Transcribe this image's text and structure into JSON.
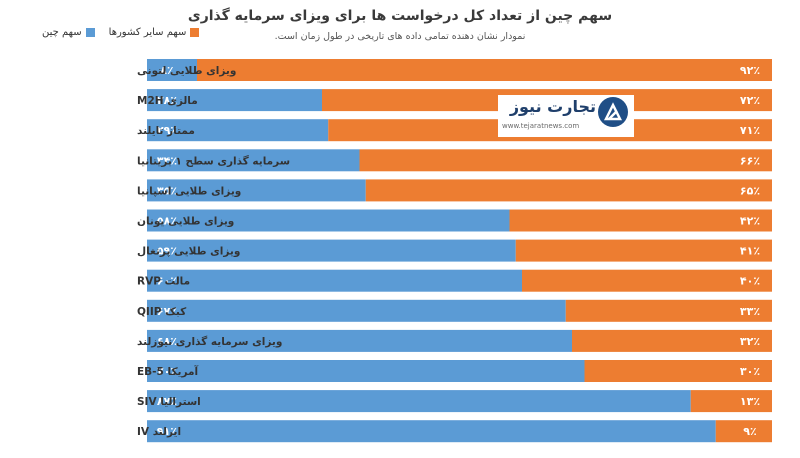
{
  "chart_data": {
    "type": "bar",
    "orientation": "horizontal",
    "stacked": "100%",
    "title": "سهم چین از تعداد کل درخواست ها برای ویزای سرمایه گذاری",
    "subtitle": "نمودار نشان دهنده تمامی داده های تاریخی در طول زمان است.",
    "categories": [
      "ویزای طلایی لتونی",
      "مالزی M2H",
      "ممتاز تایلند",
      "سرمایه گذاری سطح ۱ بریتانیا",
      "ویزای طلایی اسپانیا",
      "ویزای طلایی یونان",
      "ویزای طلایی پرتغال",
      "مالت RVP",
      "کبک QIIP",
      "ویزای سرمایه گذاری نیوزلند",
      "آمریکا EB-5",
      "استرالیا SIV",
      "ایرلند IV"
    ],
    "series": [
      {
        "name": "سهم چین",
        "color": "#5b9bd5",
        "values": [
          8,
          28,
          29,
          34,
          35,
          58,
          59,
          60,
          67,
          68,
          70,
          87,
          91
        ],
        "labels": [
          "۸٪",
          "۲۸٪",
          "۲۹٪",
          "۳۴٪",
          "۳۵٪",
          "۵۸٪",
          "۵۹٪",
          "۶۰٪",
          "۶۷٪",
          "۶۸٪",
          "۷۰٪",
          "۸۷٪",
          "۹۱٪"
        ]
      },
      {
        "name": "سهم سایر کشورها",
        "color": "#ed7d31",
        "values": [
          92,
          72,
          71,
          66,
          65,
          42,
          41,
          40,
          33,
          32,
          30,
          13,
          9
        ],
        "labels": [
          "۹۲٪",
          "۷۲٪",
          "۷۱٪",
          "۶۶٪",
          "۶۵٪",
          "۴۲٪",
          "۴۱٪",
          "۴۰٪",
          "۳۳٪",
          "۳۲٪",
          "۳۰٪",
          "۱۳٪",
          "۹٪"
        ]
      }
    ],
    "xlim": [
      0,
      100
    ],
    "grid": false,
    "legend_position": "top-left"
  },
  "logo": {
    "name": "تجارت نیوز",
    "url": "www.tejaratnews.com",
    "color": "#1f4e86"
  }
}
